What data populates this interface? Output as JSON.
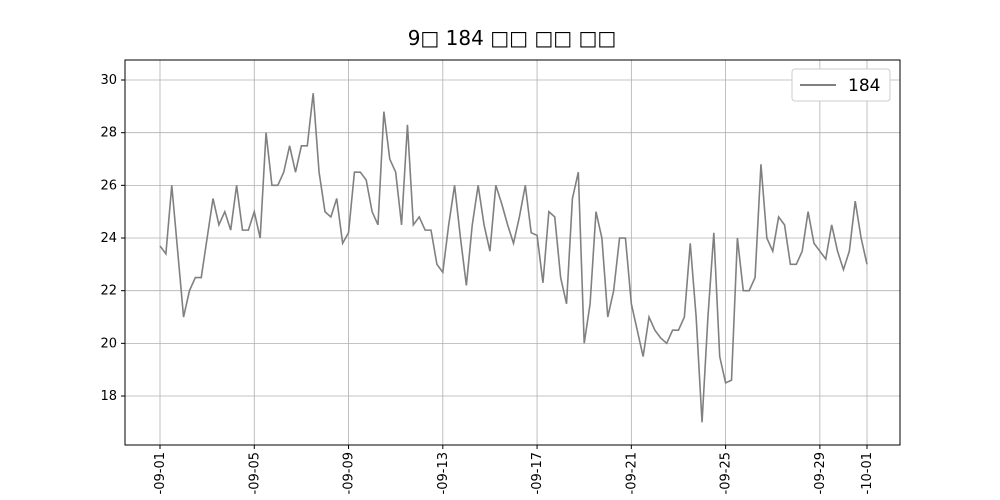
{
  "chart_data": {
    "type": "line",
    "title": "9□ 184 □□ □□ □□",
    "x": [
      0,
      0.25,
      0.5,
      0.75,
      1,
      1.25,
      1.5,
      1.75,
      2,
      2.25,
      2.5,
      2.75,
      3,
      3.25,
      3.5,
      3.75,
      4,
      4.25,
      4.5,
      4.75,
      5,
      5.25,
      5.5,
      5.75,
      6,
      6.25,
      6.5,
      6.75,
      7,
      7.25,
      7.5,
      7.75,
      8,
      8.25,
      8.5,
      8.75,
      9,
      9.25,
      9.5,
      9.75,
      10,
      10.25,
      10.5,
      10.75,
      11,
      11.25,
      11.5,
      11.75,
      12,
      12.25,
      12.5,
      12.75,
      13,
      13.25,
      13.5,
      13.75,
      14,
      14.25,
      14.5,
      14.75,
      15,
      15.25,
      15.5,
      15.75,
      16,
      16.25,
      16.5,
      16.75,
      17,
      17.25,
      17.5,
      17.75,
      18,
      18.25,
      18.5,
      18.75,
      19,
      19.25,
      19.5,
      19.75,
      20,
      20.25,
      20.5,
      20.75,
      21,
      21.25,
      21.5,
      21.75,
      22,
      22.25,
      22.5,
      22.75,
      23,
      23.25,
      23.5,
      23.75,
      24,
      24.25,
      24.5,
      24.75,
      25,
      25.25,
      25.5,
      25.75,
      26,
      26.25,
      26.5,
      26.75,
      27,
      27.25,
      27.5,
      27.75,
      28,
      28.25,
      28.5,
      28.75,
      29,
      29.25,
      29.5,
      29.75,
      30
    ],
    "series": [
      {
        "name": "184",
        "color": "#808080",
        "values": [
          23.7,
          23.4,
          26.0,
          23.5,
          21.0,
          22.0,
          22.5,
          22.5,
          24.0,
          25.5,
          24.5,
          25.0,
          24.3,
          26.0,
          24.3,
          24.3,
          25.0,
          24.0,
          28.0,
          26.0,
          26.0,
          26.5,
          27.5,
          26.5,
          27.5,
          27.5,
          29.5,
          26.5,
          25.0,
          24.8,
          25.5,
          23.8,
          24.2,
          26.5,
          26.5,
          26.2,
          25.0,
          24.5,
          28.8,
          27.0,
          26.5,
          24.5,
          28.3,
          24.5,
          24.8,
          24.3,
          24.3,
          23.0,
          22.7,
          24.5,
          26.0,
          24.0,
          22.2,
          24.5,
          26.0,
          24.5,
          23.5,
          26.0,
          25.3,
          24.5,
          23.8,
          24.8,
          26.0,
          24.2,
          24.1,
          22.3,
          25.0,
          24.8,
          22.5,
          21.5,
          25.5,
          26.5,
          20.0,
          21.5,
          25.0,
          24.0,
          21.0,
          22.0,
          24.0,
          24.0,
          21.5,
          20.5,
          19.5,
          21.0,
          20.5,
          20.2,
          20.0,
          20.5,
          20.5,
          21.0,
          23.8,
          21.0,
          17.0,
          21.0,
          24.2,
          19.5,
          18.5,
          18.6,
          24.0,
          22.0,
          22.0,
          22.5,
          26.8,
          24.0,
          23.5,
          24.8,
          24.5,
          23.0,
          23.0,
          23.5,
          25.0,
          23.8,
          23.5,
          23.2,
          24.5,
          23.5,
          22.8,
          23.5,
          25.4,
          24.0,
          23.0
        ]
      }
    ],
    "xlim": [
      -1.485,
      31.4
    ],
    "xticks": [
      {
        "value": 0,
        "label": "-09-01"
      },
      {
        "value": 4,
        "label": "-09-05"
      },
      {
        "value": 8,
        "label": "-09-09"
      },
      {
        "value": 12,
        "label": "-09-13"
      },
      {
        "value": 16,
        "label": "-09-17"
      },
      {
        "value": 20,
        "label": "-09-21"
      },
      {
        "value": 24,
        "label": "-09-25"
      },
      {
        "value": 28,
        "label": "-09-29"
      },
      {
        "value": 30,
        "label": "-10-01"
      }
    ],
    "ylim": [
      16.14,
      30.76
    ],
    "yticks": [
      18,
      20,
      22,
      24,
      26,
      28,
      30
    ],
    "grid": true,
    "legend": "upper-right"
  }
}
